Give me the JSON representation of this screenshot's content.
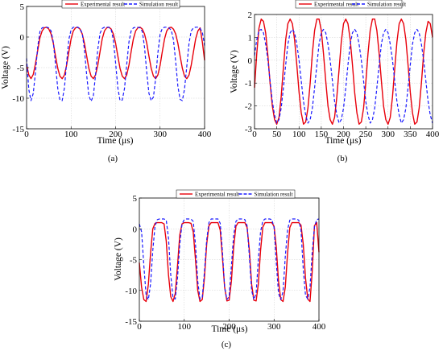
{
  "chart_data": [
    {
      "type": "line",
      "caption": "(a)",
      "xlabel": "Time (μs)",
      "ylabel": "Voltage (V)",
      "xlim": [
        0,
        400
      ],
      "ylim": [
        -15,
        5
      ],
      "xticks": [
        0,
        100,
        200,
        300,
        400
      ],
      "yticks": [
        -15,
        -10,
        -5,
        0,
        5
      ],
      "grid": true,
      "legend_position": "top",
      "series": [
        {
          "name": "Experimental result",
          "color": "#e8000b",
          "style": "solid",
          "x": [
            0,
            5,
            10,
            15,
            20,
            25,
            30,
            35,
            40,
            45,
            50,
            55,
            60,
            65,
            70,
            75,
            80,
            85,
            90,
            95,
            100,
            105,
            110,
            115,
            120,
            125,
            130,
            135,
            140,
            145,
            150,
            155,
            160,
            165,
            170,
            175,
            180,
            185,
            190,
            195,
            200,
            205,
            210,
            215,
            220,
            225,
            230,
            235,
            240,
            245,
            250,
            255,
            260,
            265,
            270,
            275,
            280,
            285,
            290,
            295,
            300,
            305,
            310,
            315,
            320,
            325,
            330,
            335,
            340,
            345,
            350,
            355,
            360,
            365,
            370,
            375,
            380,
            385,
            390,
            395,
            400
          ],
          "y": [
            -4.5,
            -6.2,
            -6.8,
            -6.1,
            -4.4,
            -2.2,
            -0.1,
            1.0,
            1.5,
            1.6,
            1.3,
            0.5,
            -1.0,
            -3.1,
            -5.1,
            -6.4,
            -6.8,
            -6.2,
            -4.6,
            -2.4,
            -0.3,
            1.0,
            1.5,
            1.6,
            1.3,
            0.5,
            -1.0,
            -3.1,
            -5.1,
            -6.4,
            -6.8,
            -6.2,
            -4.6,
            -2.4,
            -0.3,
            1.0,
            1.5,
            1.6,
            1.3,
            0.5,
            -1.0,
            -3.1,
            -5.1,
            -6.4,
            -6.8,
            -6.2,
            -4.6,
            -2.4,
            -0.3,
            1.0,
            1.5,
            1.6,
            1.3,
            0.5,
            -1.0,
            -3.1,
            -5.1,
            -6.4,
            -6.8,
            -6.2,
            -4.6,
            -2.4,
            -0.3,
            1.0,
            1.5,
            1.6,
            1.3,
            0.5,
            -1.0,
            -3.1,
            -5.1,
            -6.4,
            -6.8,
            -6.2,
            -4.6,
            -2.4,
            -0.3,
            1.0,
            1.5,
            -0.8,
            -3.8
          ]
        },
        {
          "name": "Simulation result",
          "color": "#1a1aff",
          "style": "dashed",
          "x": [
            0,
            5,
            10,
            15,
            20,
            25,
            30,
            35,
            40,
            45,
            50,
            55,
            60,
            65,
            70,
            75,
            80,
            85,
            90,
            95,
            100,
            105,
            110,
            115,
            120,
            125,
            130,
            135,
            140,
            145,
            150,
            155,
            160,
            165,
            170,
            175,
            180,
            185,
            190,
            195,
            200,
            205,
            210,
            215,
            220,
            225,
            230,
            235,
            240,
            245,
            250,
            255,
            260,
            265,
            270,
            275,
            280,
            285,
            290,
            295,
            300,
            305,
            310,
            315,
            320,
            325,
            330,
            335,
            340,
            345,
            350,
            355,
            360,
            365,
            370,
            375,
            380,
            385,
            390,
            395,
            400
          ],
          "y": [
            -3.5,
            -8.6,
            -10.4,
            -9.2,
            -5.8,
            -1.6,
            0.9,
            1.5,
            1.6,
            1.6,
            1.5,
            1.0,
            -0.8,
            -4.5,
            -8.4,
            -10.3,
            -10.4,
            -8.3,
            -4.2,
            -0.4,
            1.2,
            1.6,
            1.6,
            1.6,
            1.4,
            0.6,
            -2.0,
            -6.2,
            -9.6,
            -10.5,
            -9.6,
            -6.2,
            -2.0,
            0.6,
            1.4,
            1.6,
            1.6,
            1.6,
            1.2,
            -0.4,
            -4.2,
            -8.3,
            -10.4,
            -10.3,
            -8.4,
            -4.5,
            -0.8,
            1.0,
            1.5,
            1.6,
            1.6,
            1.5,
            0.9,
            -1.6,
            -5.8,
            -9.2,
            -10.4,
            -9.8,
            -6.8,
            -2.6,
            0.5,
            1.4,
            1.6,
            1.6,
            1.5,
            1.1,
            -0.4,
            -4.0,
            -8.0,
            -10.2,
            -10.4,
            -8.5,
            -4.8,
            -1.0,
            1.0,
            1.5,
            1.6,
            1.6,
            1.4,
            0.8,
            -1.4
          ]
        }
      ]
    },
    {
      "type": "line",
      "caption": "(b)",
      "xlabel": "Time (μs)",
      "ylabel": "Voltage (V)",
      "xlim": [
        0,
        400
      ],
      "ylim": [
        -3,
        2
      ],
      "xticks": [
        0,
        50,
        100,
        150,
        200,
        250,
        300,
        350,
        400
      ],
      "yticks": [
        -3,
        -2,
        -1,
        0,
        1,
        2
      ],
      "grid": true,
      "legend_position": "top",
      "series": [
        {
          "name": "Experimental result",
          "color": "#e8000b",
          "style": "solid",
          "x": [
            0,
            5,
            10,
            15,
            20,
            25,
            30,
            35,
            40,
            45,
            50,
            55,
            60,
            65,
            70,
            75,
            80,
            85,
            90,
            95,
            100,
            105,
            110,
            115,
            120,
            125,
            130,
            135,
            140,
            145,
            150,
            155,
            160,
            165,
            170,
            175,
            180,
            185,
            190,
            195,
            200,
            205,
            210,
            215,
            220,
            225,
            230,
            235,
            240,
            245,
            250,
            255,
            260,
            265,
            270,
            275,
            280,
            285,
            290,
            295,
            300,
            305,
            310,
            315,
            320,
            325,
            330,
            335,
            340,
            345,
            350,
            355,
            360,
            365,
            370,
            375,
            380,
            385,
            390,
            395,
            400
          ],
          "y": [
            -1.2,
            0.3,
            1.4,
            1.8,
            1.7,
            1.2,
            0.2,
            -1.0,
            -2.0,
            -2.6,
            -2.8,
            -2.5,
            -1.6,
            -0.3,
            0.9,
            1.6,
            1.8,
            1.6,
            0.9,
            -0.2,
            -1.4,
            -2.3,
            -2.8,
            -2.7,
            -2.1,
            -1.0,
            0.3,
            1.3,
            1.8,
            1.8,
            1.3,
            0.3,
            -0.9,
            -2.0,
            -2.6,
            -2.8,
            -2.5,
            -1.6,
            -0.4,
            0.8,
            1.6,
            1.8,
            1.6,
            0.9,
            -0.2,
            -1.4,
            -2.3,
            -2.8,
            -2.7,
            -2.1,
            -1.0,
            0.3,
            1.3,
            1.8,
            1.8,
            1.3,
            0.3,
            -0.9,
            -2.0,
            -2.6,
            -2.8,
            -2.5,
            -1.6,
            -0.4,
            0.8,
            1.6,
            1.8,
            1.6,
            0.9,
            -0.2,
            -1.4,
            -2.3,
            -2.8,
            -2.7,
            -2.1,
            -1.0,
            0.3,
            1.2,
            1.7,
            1.6,
            1.0
          ]
        },
        {
          "name": "Simulation result",
          "color": "#1a1aff",
          "style": "dashed",
          "x": [
            0,
            5,
            10,
            15,
            20,
            25,
            30,
            35,
            40,
            45,
            50,
            55,
            60,
            65,
            70,
            75,
            80,
            85,
            90,
            95,
            100,
            105,
            110,
            115,
            120,
            125,
            130,
            135,
            140,
            145,
            150,
            155,
            160,
            165,
            170,
            175,
            180,
            185,
            190,
            195,
            200,
            205,
            210,
            215,
            220,
            225,
            230,
            235,
            240,
            245,
            250,
            255,
            260,
            265,
            270,
            275,
            280,
            285,
            290,
            295,
            300,
            305,
            310,
            315,
            320,
            325,
            330,
            335,
            340,
            345,
            350,
            355,
            360,
            365,
            370,
            375,
            380,
            385,
            390,
            395,
            400
          ],
          "y": [
            0.2,
            0.9,
            1.3,
            1.35,
            1.2,
            0.7,
            0.0,
            -0.9,
            -1.8,
            -2.4,
            -2.75,
            -2.6,
            -2.1,
            -1.2,
            -0.2,
            0.7,
            1.2,
            1.35,
            1.2,
            0.7,
            0.0,
            -0.9,
            -1.8,
            -2.4,
            -2.75,
            -2.6,
            -2.1,
            -1.2,
            -0.2,
            0.7,
            1.2,
            1.35,
            1.2,
            0.7,
            0.0,
            -0.9,
            -1.8,
            -2.4,
            -2.75,
            -2.6,
            -2.1,
            -1.2,
            -0.2,
            0.7,
            1.2,
            1.35,
            1.2,
            0.7,
            0.0,
            -0.9,
            -1.8,
            -2.4,
            -2.75,
            -2.6,
            -2.1,
            -1.2,
            -0.2,
            0.7,
            1.2,
            1.35,
            1.2,
            0.7,
            0.0,
            -0.9,
            -1.8,
            -2.4,
            -2.75,
            -2.6,
            -2.1,
            -1.2,
            -0.2,
            0.7,
            1.2,
            1.35,
            1.2,
            0.7,
            0.0,
            -0.9,
            -1.8,
            -2.4,
            -2.75
          ]
        }
      ]
    },
    {
      "type": "line",
      "caption": "(c)",
      "xlabel": "Time (μs)",
      "ylabel": "Voltage (V)",
      "xlim": [
        0,
        400
      ],
      "ylim": [
        -15,
        5
      ],
      "xticks": [
        0,
        100,
        200,
        300,
        400
      ],
      "yticks": [
        -15,
        -10,
        -5,
        0,
        5
      ],
      "grid": true,
      "legend_position": "top",
      "series": [
        {
          "name": "Experimental result",
          "color": "#e8000b",
          "style": "solid",
          "x": [
            0,
            5,
            10,
            15,
            20,
            25,
            30,
            35,
            40,
            45,
            50,
            55,
            60,
            65,
            70,
            75,
            80,
            85,
            90,
            95,
            100,
            105,
            110,
            115,
            120,
            125,
            130,
            135,
            140,
            145,
            150,
            155,
            160,
            165,
            170,
            175,
            180,
            185,
            190,
            195,
            200,
            205,
            210,
            215,
            220,
            225,
            230,
            235,
            240,
            245,
            250,
            255,
            260,
            265,
            270,
            275,
            280,
            285,
            290,
            295,
            300,
            305,
            310,
            315,
            320,
            325,
            330,
            335,
            340,
            345,
            350,
            355,
            360,
            365,
            370,
            375,
            380,
            385,
            390,
            395,
            400
          ],
          "y": [
            -5.5,
            -9.5,
            -11.5,
            -11.8,
            -9.0,
            -4.0,
            0.0,
            0.9,
            1.0,
            1.0,
            1.0,
            0.8,
            -2.0,
            -7.5,
            -11.0,
            -11.8,
            -10.5,
            -6.0,
            -1.0,
            0.8,
            1.0,
            1.0,
            1.0,
            0.9,
            -0.5,
            -5.0,
            -10.0,
            -11.8,
            -11.5,
            -8.0,
            -2.5,
            0.5,
            1.0,
            1.0,
            1.0,
            1.0,
            -0.2,
            -4.5,
            -9.5,
            -11.7,
            -11.6,
            -8.5,
            -3.0,
            0.4,
            1.0,
            1.0,
            1.0,
            1.0,
            0.2,
            -3.5,
            -9.0,
            -11.6,
            -11.7,
            -9.0,
            -3.5,
            0.3,
            1.0,
            1.0,
            1.0,
            1.0,
            0.4,
            -3.0,
            -8.5,
            -11.5,
            -11.8,
            -9.5,
            -4.0,
            0.2,
            1.0,
            1.0,
            1.0,
            1.0,
            0.6,
            -2.5,
            -8.0,
            -11.4,
            -11.8,
            -7.0,
            0.5,
            1.0,
            -3.8
          ]
        },
        {
          "name": "Simulation result",
          "color": "#1a1aff",
          "style": "dashed",
          "x": [
            0,
            5,
            10,
            15,
            20,
            25,
            30,
            35,
            40,
            45,
            50,
            55,
            60,
            65,
            70,
            75,
            80,
            85,
            90,
            95,
            100,
            105,
            110,
            115,
            120,
            125,
            130,
            135,
            140,
            145,
            150,
            155,
            160,
            165,
            170,
            175,
            180,
            185,
            190,
            195,
            200,
            205,
            210,
            215,
            220,
            225,
            230,
            235,
            240,
            245,
            250,
            255,
            260,
            265,
            270,
            275,
            280,
            285,
            290,
            295,
            300,
            305,
            310,
            315,
            320,
            325,
            330,
            335,
            340,
            345,
            350,
            355,
            360,
            365,
            370,
            375,
            380,
            385,
            390,
            395,
            400
          ],
          "y": [
            0.8,
            -0.5,
            -6.0,
            -10.8,
            -11.5,
            -9.0,
            -3.5,
            0.5,
            1.5,
            1.6,
            1.6,
            1.6,
            1.4,
            -1.5,
            -7.5,
            -11.2,
            -11.4,
            -8.0,
            -2.5,
            0.8,
            1.5,
            1.6,
            1.6,
            1.6,
            1.2,
            -2.5,
            -8.5,
            -11.4,
            -11.2,
            -7.0,
            -1.8,
            1.0,
            1.6,
            1.6,
            1.6,
            1.6,
            0.9,
            -3.5,
            -9.5,
            -11.5,
            -11.0,
            -6.0,
            -1.0,
            1.2,
            1.6,
            1.6,
            1.6,
            1.5,
            0.5,
            -4.5,
            -10.0,
            -11.5,
            -10.5,
            -5.0,
            -0.5,
            1.3,
            1.6,
            1.6,
            1.6,
            1.5,
            0.2,
            -5.5,
            -10.5,
            -11.5,
            -10.2,
            -4.5,
            -0.2,
            1.4,
            1.6,
            1.6,
            1.6,
            1.4,
            -0.2,
            -6.5,
            -10.8,
            -11.4,
            -9.5,
            -3.8,
            0.3,
            1.5,
            1.6
          ]
        }
      ]
    }
  ]
}
